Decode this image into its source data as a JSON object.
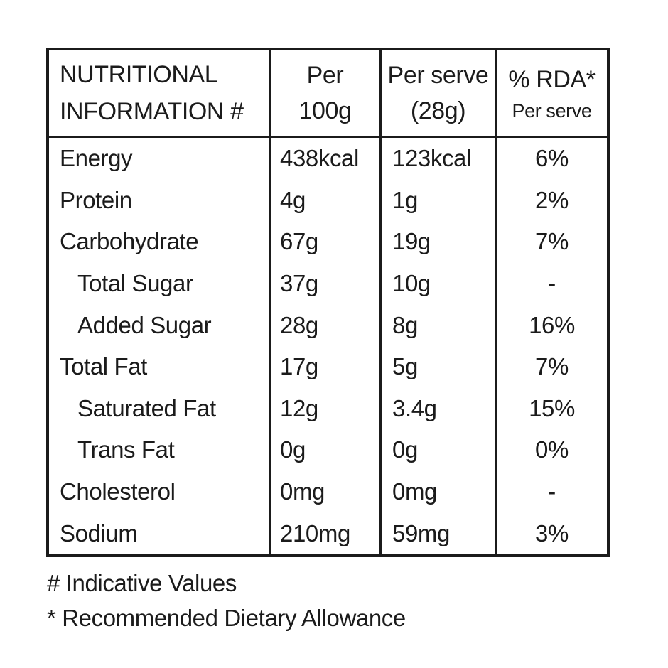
{
  "page": {
    "background_color": "#ffffff",
    "text_color": "#1b1b1b",
    "border_color": "#1b1b1b"
  },
  "table": {
    "columns": [
      {
        "line1": "NUTRITIONAL",
        "line2": "INFORMATION #"
      },
      {
        "line1": "Per",
        "line2": "100g"
      },
      {
        "line1": "Per serve",
        "line2": "(28g)"
      },
      {
        "line1": "% RDA*",
        "line2": "Per serve"
      }
    ],
    "rows": [
      {
        "nutrient": "Energy",
        "indent": false,
        "per_100g": "438kcal",
        "per_serve": "123kcal",
        "rda": "6%"
      },
      {
        "nutrient": "Protein",
        "indent": false,
        "per_100g": "4g",
        "per_serve": "1g",
        "rda": "2%"
      },
      {
        "nutrient": "Carbohydrate",
        "indent": false,
        "per_100g": "67g",
        "per_serve": "19g",
        "rda": "7%"
      },
      {
        "nutrient": "Total Sugar",
        "indent": true,
        "per_100g": "37g",
        "per_serve": "10g",
        "rda": "-"
      },
      {
        "nutrient": "Added Sugar",
        "indent": true,
        "per_100g": "28g",
        "per_serve": "8g",
        "rda": "16%"
      },
      {
        "nutrient": "Total Fat",
        "indent": false,
        "per_100g": "17g",
        "per_serve": "5g",
        "rda": "7%"
      },
      {
        "nutrient": "Saturated Fat",
        "indent": true,
        "per_100g": "12g",
        "per_serve": "3.4g",
        "rda": "15%"
      },
      {
        "nutrient": "Trans Fat",
        "indent": true,
        "per_100g": "0g",
        "per_serve": "0g",
        "rda": "0%"
      },
      {
        "nutrient": "Cholesterol",
        "indent": false,
        "per_100g": "0mg",
        "per_serve": "0mg",
        "rda": "-"
      },
      {
        "nutrient": "Sodium",
        "indent": false,
        "per_100g": "210mg",
        "per_serve": "59mg",
        "rda": "3%"
      }
    ]
  },
  "footnotes": [
    "# Indicative Values",
    "* Recommended Dietary Allowance"
  ]
}
